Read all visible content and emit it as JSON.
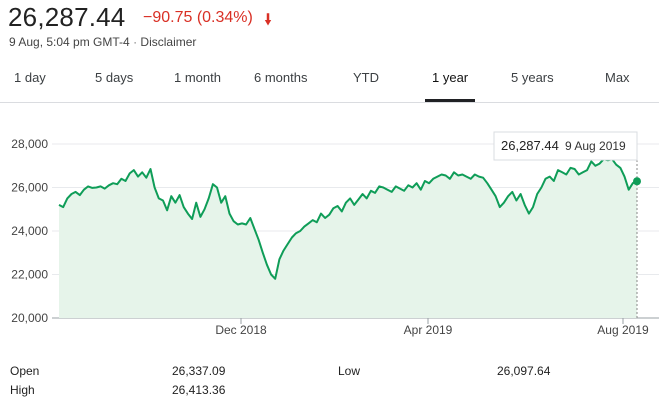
{
  "quote": {
    "price": "26,287.44",
    "change": "−90.75 (0.34%)",
    "direction_icon": "arrow-down-icon",
    "timestamp": "9 Aug, 5:04 pm GMT-4",
    "separator": "·",
    "disclaimer": "Disclaimer"
  },
  "tabs": [
    "1 day",
    "5 days",
    "1 month",
    "6 months",
    "YTD",
    "1 year",
    "5 years",
    "Max"
  ],
  "active_tab": "1 year",
  "tooltip": {
    "value": "26,287.44",
    "date": "9 Aug 2019"
  },
  "colors": {
    "line": "#0f9d58",
    "fill": "#e6f4ea",
    "negative": "#d93025"
  },
  "chart_data": {
    "type": "area",
    "y_axis": {
      "ticks": [
        "28,000",
        "26,000",
        "24,000",
        "22,000",
        "20,000"
      ],
      "range": [
        20000,
        28000
      ]
    },
    "x_axis": {
      "tick_labels": [
        "Dec 2018",
        "Apr 2019",
        "Aug 2019"
      ]
    },
    "grid": true,
    "series": [
      {
        "values": [
          25200,
          25100,
          25500,
          25700,
          25800,
          25650,
          25900,
          26050,
          25980,
          26000,
          26050,
          25950,
          26100,
          26200,
          26150,
          26400,
          26300,
          26650,
          26800,
          26500,
          26700,
          26450,
          26850,
          26000,
          25500,
          25400,
          24950,
          25600,
          25300,
          25650,
          25100,
          24800,
          24550,
          25300,
          24650,
          25000,
          25500,
          26150,
          26000,
          25300,
          25600,
          24800,
          24450,
          24300,
          24350,
          24300,
          24600,
          24100,
          23600,
          23000,
          22450,
          22000,
          21800,
          22700,
          23100,
          23400,
          23700,
          23900,
          24000,
          24200,
          24350,
          24500,
          24400,
          24800,
          24600,
          24750,
          25050,
          25150,
          24900,
          25300,
          25500,
          25200,
          25450,
          25700,
          25500,
          25850,
          25750,
          26050,
          26000,
          25900,
          25800,
          26050,
          25950,
          25850,
          26100,
          26000,
          26200,
          25900,
          26300,
          26200,
          26400,
          26500,
          26600,
          26550,
          26400,
          26700,
          26550,
          26600,
          26500,
          26400,
          26600,
          26500,
          26450,
          26200,
          25900,
          25600,
          25100,
          25300,
          25600,
          25800,
          25400,
          25700,
          25200,
          24800,
          25100,
          25700,
          26000,
          26400,
          26500,
          26300,
          26800,
          26700,
          26600,
          26900,
          26850,
          26600,
          26700,
          26800,
          27200,
          27000,
          27100,
          27300,
          27250,
          27300,
          27050,
          26900,
          26500,
          25900,
          26200,
          26287
        ]
      }
    ]
  },
  "stats": [
    {
      "label": "Open",
      "value": "26,337.09"
    },
    {
      "label": "High",
      "value": "26,413.36"
    },
    {
      "label": "Low",
      "value": "26,097.64"
    }
  ]
}
